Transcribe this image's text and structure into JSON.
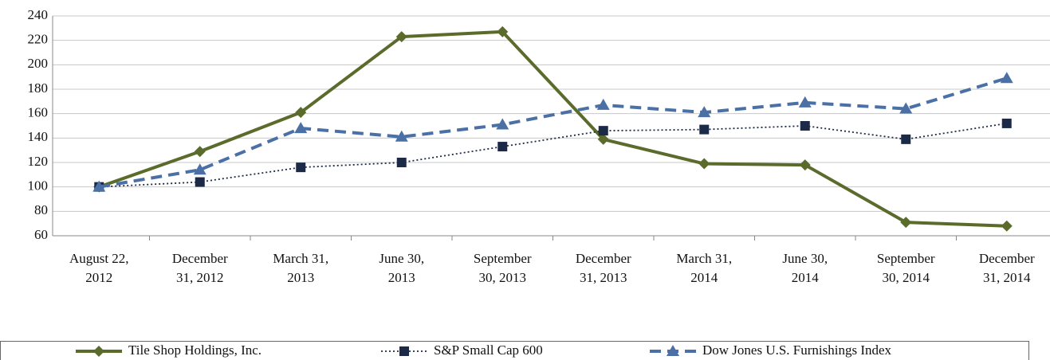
{
  "chart_data": {
    "type": "line",
    "categories": [
      [
        "August 22,",
        "2012"
      ],
      [
        "December",
        "31, 2012"
      ],
      [
        "March 31,",
        "2013"
      ],
      [
        "June 30,",
        "2013"
      ],
      [
        "September",
        "30, 2013"
      ],
      [
        "December",
        "31, 2013"
      ],
      [
        "March 31,",
        "2014"
      ],
      [
        "June 30,",
        "2014"
      ],
      [
        "September",
        "30, 2014"
      ],
      [
        "December",
        "31, 2014"
      ]
    ],
    "series": [
      {
        "name": "Tile Shop Holdings, Inc.",
        "color": "#5a6b2b",
        "marker": "diamond",
        "dash": "solid",
        "values": [
          100,
          129,
          161,
          223,
          227,
          139,
          119,
          118,
          71,
          68
        ]
      },
      {
        "name": "S&P Small Cap 600",
        "color": "#1c2a48",
        "marker": "square",
        "dash": "dotted",
        "values": [
          100,
          104,
          116,
          120,
          133,
          146,
          147,
          150,
          139,
          152
        ]
      },
      {
        "name": "Dow Jones U.S. Furnishings Index",
        "color": "#4a70a6",
        "marker": "triangle",
        "dash": "dashed",
        "values": [
          100,
          114,
          148,
          141,
          151,
          167,
          161,
          169,
          164,
          189
        ]
      }
    ],
    "ylim": [
      60,
      240
    ],
    "yticks": [
      60,
      80,
      100,
      120,
      140,
      160,
      180,
      200,
      220,
      240
    ],
    "grid": true,
    "legend": "bottom"
  }
}
